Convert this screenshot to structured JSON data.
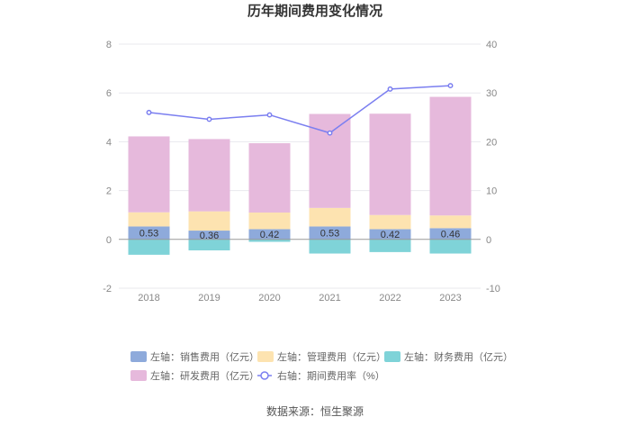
{
  "chart_data": {
    "type": "bar",
    "title": "历年期间费用变化情况",
    "categories": [
      "2018",
      "2019",
      "2020",
      "2021",
      "2022",
      "2023"
    ],
    "left_axis": {
      "ylim": [
        -2,
        8
      ],
      "ticks": [
        "-2",
        "0",
        "2",
        "4",
        "6",
        "8"
      ]
    },
    "right_axis": {
      "ylim": [
        -10,
        40
      ],
      "ticks": [
        "-10",
        "0",
        "10",
        "20",
        "30",
        "40"
      ]
    },
    "series": [
      {
        "name": "左轴：销售费用（亿元）",
        "axis": "left",
        "stack": "pos",
        "color": "#8eaadb",
        "values": [
          0.53,
          0.36,
          0.42,
          0.53,
          0.42,
          0.46
        ],
        "labels": [
          "0.53",
          "0.36",
          "0.42",
          "0.53",
          "0.42",
          "0.46"
        ]
      },
      {
        "name": "左轴：管理费用（亿元）",
        "axis": "left",
        "stack": "pos",
        "color": "#fde3b0",
        "values": [
          0.58,
          0.79,
          0.68,
          0.76,
          0.58,
          0.52
        ]
      },
      {
        "name": "左轴：财务费用（亿元）",
        "axis": "left",
        "stack": "neg",
        "color": "#7fd3d8",
        "values": [
          -0.63,
          -0.45,
          -0.1,
          -0.58,
          -0.52,
          -0.58
        ]
      },
      {
        "name": "左轴：研发费用（亿元）",
        "axis": "left",
        "stack": "pos",
        "color": "#e6b9dc",
        "values": [
          3.11,
          2.96,
          2.84,
          3.85,
          4.15,
          4.86
        ]
      },
      {
        "name": "右轴：期间费用率（%）",
        "axis": "right",
        "type": "line",
        "color": "#7b7ff0",
        "values": [
          26.0,
          24.6,
          25.5,
          21.8,
          30.8,
          31.5
        ]
      }
    ]
  },
  "source": "数据来源：恒生聚源"
}
